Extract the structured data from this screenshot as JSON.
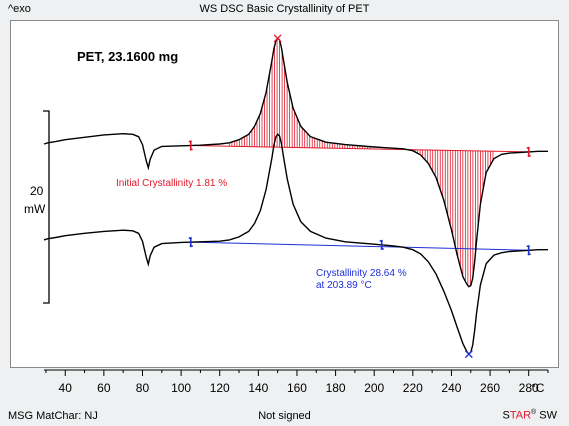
{
  "header": {
    "exo_label": "^exo",
    "title": "WS DSC Basic Crystallinity of PET"
  },
  "footer": {
    "left": "MSG MatChar: NJ",
    "center": "Not signed",
    "logo_star_plain_s": "S",
    "logo_star_red": "TAR",
    "logo_reg": "®",
    "logo_sw": " SW"
  },
  "scale_bar": {
    "value": "20",
    "unit": "mW"
  },
  "colors": {
    "curve": "#000000",
    "red": "#e0192a",
    "blue": "#1f2fd6",
    "hatch": "#e0192a"
  },
  "chart_data": {
    "type": "line",
    "title": "WS DSC Basic Crystallinity of PET",
    "sample_label": "PET, 23.1600 mg",
    "xlabel": "°C",
    "xlim": [
      29,
      290
    ],
    "xticks": [
      40,
      60,
      80,
      100,
      120,
      140,
      160,
      180,
      200,
      220,
      240,
      260,
      280
    ],
    "series": [
      {
        "x": [
          29,
          31,
          35,
          40,
          50,
          60,
          70,
          75,
          78,
          80,
          82,
          83,
          84,
          86,
          90,
          100,
          110,
          120,
          125,
          130,
          135,
          138,
          141,
          144,
          147,
          148,
          149,
          150,
          151,
          152,
          153,
          155,
          158,
          162,
          167,
          175,
          185,
          200,
          210,
          215,
          220,
          224,
          228,
          232,
          236,
          240,
          243,
          246,
          248,
          249,
          250,
          251,
          252,
          253,
          255,
          258,
          262,
          266,
          270,
          275,
          280,
          285,
          290
        ],
        "y": [
          105.9,
          106.1,
          106.3,
          106.6,
          107.0,
          107.4,
          107.6,
          107.5,
          107.1,
          105.8,
          103.1,
          102.0,
          103.4,
          104.9,
          105.5,
          105.6,
          105.7,
          105.9,
          106.1,
          106.6,
          107.5,
          108.8,
          110.9,
          114.4,
          119.6,
          121.5,
          122.8,
          123.3,
          123.0,
          121.7,
          119.8,
          116.0,
          111.8,
          108.8,
          107.1,
          106.2,
          105.8,
          105.4,
          105.2,
          105.1,
          104.8,
          104.1,
          102.7,
          100.4,
          96.7,
          91.8,
          87.6,
          84.0,
          82.8,
          82.4,
          82.6,
          83.8,
          86.4,
          90.0,
          96.0,
          101.2,
          103.5,
          104.2,
          104.4,
          104.5,
          104.6,
          104.7,
          104.7
        ]
      },
      {
        "x": [
          29,
          31,
          35,
          40,
          50,
          60,
          70,
          75,
          78,
          80,
          82,
          83,
          84,
          86,
          90,
          100,
          110,
          120,
          125,
          130,
          135,
          138,
          141,
          144,
          147,
          148,
          149,
          150,
          151,
          152,
          153,
          155,
          158,
          162,
          167,
          175,
          185,
          200,
          210,
          215,
          220,
          224,
          228,
          232,
          236,
          240,
          243,
          246,
          248,
          249,
          250,
          251,
          252,
          253,
          255,
          258,
          262,
          266,
          270,
          275,
          280,
          285,
          290
        ],
        "y": [
          90.1,
          90.3,
          90.5,
          90.8,
          91.2,
          91.5,
          91.7,
          91.6,
          91.2,
          89.9,
          87.2,
          86.1,
          87.5,
          88.9,
          89.5,
          89.7,
          89.8,
          89.9,
          90.1,
          90.6,
          91.5,
          92.8,
          94.9,
          98.4,
          103.6,
          105.6,
          107.0,
          107.5,
          107.2,
          105.9,
          103.9,
          100.1,
          96.0,
          93.1,
          91.5,
          90.4,
          89.8,
          89.4,
          89.1,
          88.9,
          88.5,
          87.8,
          86.5,
          84.5,
          81.7,
          78.5,
          75.7,
          73.0,
          71.7,
          71.3,
          71.6,
          72.8,
          75.1,
          78.1,
          82.7,
          86.2,
          87.6,
          88.0,
          88.2,
          88.3,
          88.4,
          88.5,
          88.5
        ]
      }
    ],
    "annotations": [
      {
        "text": "Initial Crystallinity 1.81 %"
      },
      {
        "text": "Crystallinity  28.64 %"
      },
      {
        "text": "at 203.89 °C"
      }
    ]
  }
}
